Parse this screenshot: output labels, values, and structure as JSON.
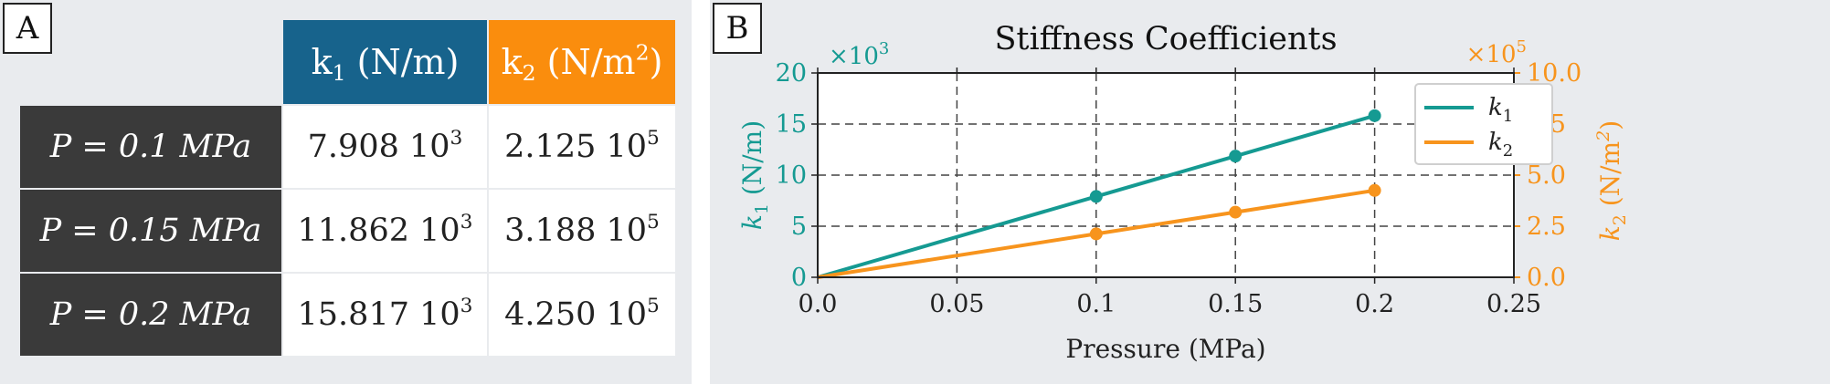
{
  "panel_a": {
    "letter": "A",
    "table": {
      "col_headers": [
        {
          "base": "k",
          "sub": "1",
          "unit_pre": " (N/m",
          "unit_sup": "",
          "unit_post": ")"
        },
        {
          "base": "k",
          "sub": "2",
          "unit_pre": " (N/m",
          "unit_sup": "2",
          "unit_post": ")"
        }
      ],
      "rows": [
        {
          "label": "P = 0.1 MPa",
          "k1": {
            "mantissa": "7.908 10",
            "exp": "3"
          },
          "k2": {
            "mantissa": "2.125 10",
            "exp": "5"
          }
        },
        {
          "label": "P = 0.15 MPa",
          "k1": {
            "mantissa": "11.862 10",
            "exp": "3"
          },
          "k2": {
            "mantissa": "3.188 10",
            "exp": "5"
          }
        },
        {
          "label": "P = 0.2 MPa",
          "k1": {
            "mantissa": "15.817 10",
            "exp": "3"
          },
          "k2": {
            "mantissa": "4.250 10",
            "exp": "5"
          }
        }
      ],
      "colors": {
        "k1_header": "#17638c",
        "k2_header": "#fa8d0d",
        "row_label_bg": "#3a3a3a"
      }
    }
  },
  "panel_b": {
    "letter": "B"
  },
  "chart_data": {
    "type": "line",
    "title": "Stiffness Coefficients",
    "xlabel": "Pressure (MPa)",
    "xlim": [
      0.0,
      0.25
    ],
    "x_ticks": [
      "0.0",
      "0.05",
      "0.1",
      "0.15",
      "0.2",
      "0.25"
    ],
    "x_tick_values": [
      0.0,
      0.05,
      0.1,
      0.15,
      0.2,
      0.25
    ],
    "grid": true,
    "legend_position": "top-right",
    "axes": {
      "left": {
        "label_base": "k",
        "label_sub": "1",
        "label_unit": " (N/m)",
        "multiplier": "×10",
        "multiplier_exp": "3",
        "ylim": [
          0,
          20
        ],
        "ticks": [
          "0",
          "5",
          "10",
          "15",
          "20"
        ],
        "tick_values": [
          0,
          5,
          10,
          15,
          20
        ],
        "color": "#159a92"
      },
      "right": {
        "label_base": "k",
        "label_sub": "2",
        "label_unit": " (N/m",
        "label_unit_sup": "2",
        "label_unit_post": ")",
        "multiplier": "×10",
        "multiplier_exp": "5",
        "ylim": [
          0.0,
          10.0
        ],
        "ticks": [
          "0.0",
          "2.5",
          "5.0",
          "7.5",
          "10.0"
        ],
        "tick_values": [
          0.0,
          2.5,
          5.0,
          7.5,
          10.0
        ],
        "color": "#f7941d"
      }
    },
    "series": [
      {
        "name_base": "k",
        "name_sub": "1",
        "axis": "left",
        "color": "#159a92",
        "x": [
          0.0,
          0.1,
          0.15,
          0.2
        ],
        "y": [
          0,
          7.908,
          11.862,
          15.817
        ]
      },
      {
        "name_base": "k",
        "name_sub": "2",
        "axis": "right",
        "color": "#f7941d",
        "x": [
          0.0,
          0.1,
          0.15,
          0.2
        ],
        "y": [
          0.0,
          2.125,
          3.188,
          4.25
        ]
      }
    ]
  }
}
